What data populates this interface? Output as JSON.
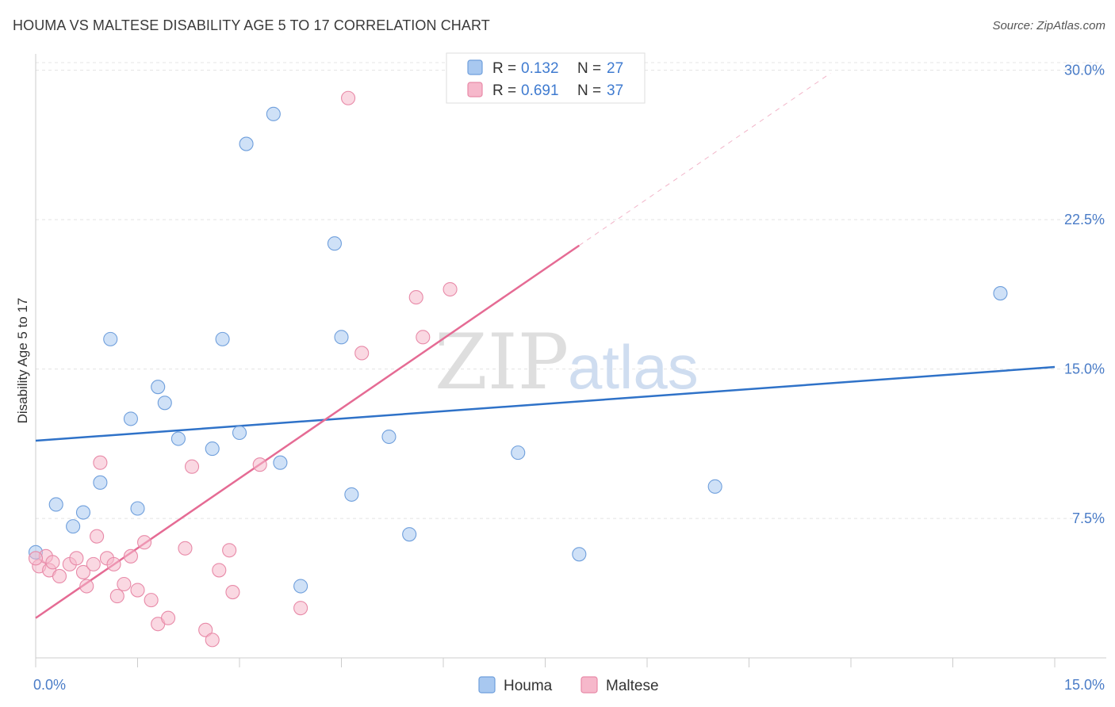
{
  "title": "HOUMA VS MALTESE DISABILITY AGE 5 TO 17 CORRELATION CHART",
  "source": "Source: ZipAtlas.com",
  "watermark": {
    "zip": "ZIP",
    "atlas": "atlas"
  },
  "legend_top": [
    {
      "r_label": "R = ",
      "r_value": "0.132",
      "n_label": "N = ",
      "n_value": "27",
      "color": "#a8c8f0"
    },
    {
      "r_label": "R = ",
      "r_value": "0.691",
      "n_label": "N = ",
      "n_value": "37",
      "color": "#f6b8cb"
    }
  ],
  "legend_bottom": [
    "Houma",
    "Maltese"
  ],
  "chart_data": {
    "type": "scatter",
    "ylabel": "Disability Age 5 to 17",
    "xlim": [
      0,
      15
    ],
    "ylim": [
      0.5,
      30.5
    ],
    "x_tick_labels": [
      "0.0%",
      "15.0%"
    ],
    "y_ticks": [
      7.5,
      15.0,
      22.5,
      30.0
    ],
    "y_tick_labels": [
      "7.5%",
      "15.0%",
      "22.5%",
      "30.0%"
    ],
    "grid": true,
    "series": [
      {
        "name": "Houma",
        "color": "#a8c8f0",
        "stroke": "#6f9fdc",
        "line_color": "#2f72c8",
        "trend": {
          "x0": 0,
          "y0": 11.4,
          "x1": 15,
          "y1": 15.1,
          "dashed_to": 15
        },
        "points": [
          [
            0.0,
            5.8
          ],
          [
            0.3,
            8.2
          ],
          [
            0.55,
            7.1
          ],
          [
            0.7,
            7.8
          ],
          [
            0.95,
            9.3
          ],
          [
            1.1,
            16.5
          ],
          [
            1.4,
            12.5
          ],
          [
            1.5,
            8.0
          ],
          [
            1.8,
            14.1
          ],
          [
            1.9,
            13.3
          ],
          [
            2.1,
            11.5
          ],
          [
            2.6,
            11.0
          ],
          [
            2.75,
            16.5
          ],
          [
            3.1,
            26.3
          ],
          [
            3.5,
            27.8
          ],
          [
            3.0,
            11.8
          ],
          [
            3.6,
            10.3
          ],
          [
            3.9,
            4.1
          ],
          [
            4.4,
            21.3
          ],
          [
            4.5,
            16.6
          ],
          [
            4.65,
            8.7
          ],
          [
            5.2,
            11.6
          ],
          [
            5.5,
            6.7
          ],
          [
            7.1,
            10.8
          ],
          [
            8.0,
            5.7
          ],
          [
            10.0,
            9.1
          ],
          [
            14.2,
            18.8
          ]
        ]
      },
      {
        "name": "Maltese",
        "color": "#f6b8cb",
        "stroke": "#e88aa8",
        "line_color": "#e56b94",
        "trend": {
          "x0": 0,
          "y0": 2.5,
          "x1": 8.0,
          "y1": 21.2,
          "dashed_to": 11.7
        },
        "points": [
          [
            0.05,
            5.1
          ],
          [
            0.15,
            5.6
          ],
          [
            0.2,
            4.9
          ],
          [
            0.25,
            5.3
          ],
          [
            0.35,
            4.6
          ],
          [
            0.5,
            5.2
          ],
          [
            0.6,
            5.5
          ],
          [
            0.7,
            4.8
          ],
          [
            0.75,
            4.1
          ],
          [
            0.85,
            5.2
          ],
          [
            0.9,
            6.6
          ],
          [
            0.95,
            10.3
          ],
          [
            1.05,
            5.5
          ],
          [
            1.15,
            5.2
          ],
          [
            1.2,
            3.6
          ],
          [
            1.3,
            4.2
          ],
          [
            1.4,
            5.6
          ],
          [
            1.5,
            3.9
          ],
          [
            1.6,
            6.3
          ],
          [
            1.7,
            3.4
          ],
          [
            1.8,
            2.2
          ],
          [
            1.95,
            2.5
          ],
          [
            2.2,
            6.0
          ],
          [
            2.3,
            10.1
          ],
          [
            2.5,
            1.9
          ],
          [
            2.6,
            1.4
          ],
          [
            2.7,
            4.9
          ],
          [
            2.85,
            5.9
          ],
          [
            2.9,
            3.8
          ],
          [
            3.3,
            10.2
          ],
          [
            3.9,
            3.0
          ],
          [
            4.6,
            28.6
          ],
          [
            4.8,
            15.8
          ],
          [
            5.6,
            18.6
          ],
          [
            5.7,
            16.6
          ],
          [
            6.1,
            19.0
          ],
          [
            0.0,
            5.5
          ]
        ]
      }
    ]
  }
}
